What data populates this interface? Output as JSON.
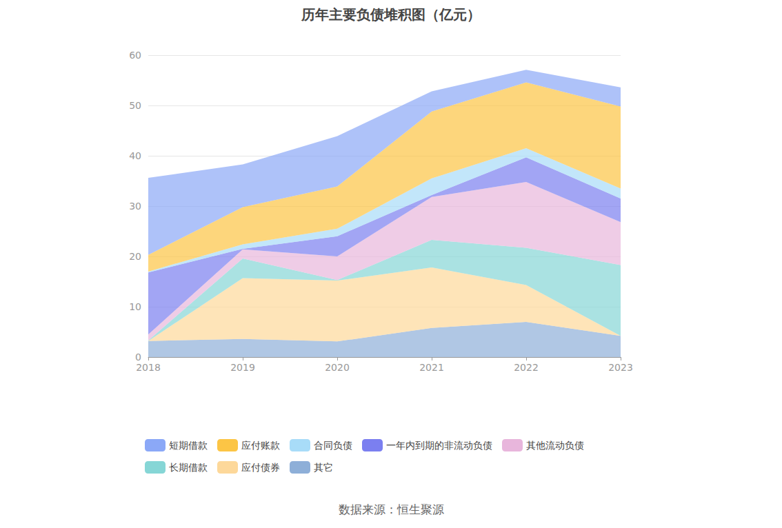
{
  "chart_data": {
    "type": "area",
    "title": "历年主要负债堆积图（亿元）",
    "source": "数据来源：恒生聚源",
    "categories": [
      "2018",
      "2019",
      "2020",
      "2021",
      "2022",
      "2023"
    ],
    "stacked": true,
    "grid": true,
    "legend": "bottom",
    "ylim": [
      0,
      60
    ],
    "yticks": [
      0,
      10,
      20,
      30,
      40,
      50,
      60
    ],
    "series": [
      {
        "name": "短期借款",
        "color": "#8ba8f7",
        "values": [
          15.3,
          8.5,
          10.0,
          4.0,
          2.5,
          3.8
        ]
      },
      {
        "name": "应付账款",
        "color": "#fcc545",
        "values": [
          3.3,
          7.4,
          8.4,
          13.3,
          13.1,
          16.3
        ]
      },
      {
        "name": "合同负债",
        "color": "#a8dcf8",
        "values": [
          0.2,
          0.9,
          1.5,
          3.3,
          1.8,
          2.0
        ]
      },
      {
        "name": "一年内到期的非流动负债",
        "color": "#7b7ff0",
        "values": [
          12.3,
          0.1,
          4.0,
          0.4,
          4.9,
          4.7
        ]
      },
      {
        "name": "其他流动负债",
        "color": "#e8b6dc",
        "values": [
          1.2,
          1.8,
          4.7,
          8.5,
          13.1,
          8.5
        ]
      },
      {
        "name": "长期借款",
        "color": "#86d6d6",
        "values": [
          0.1,
          3.9,
          0.1,
          5.5,
          7.4,
          14.1
        ]
      },
      {
        "name": "应付债券",
        "color": "#fdd89a",
        "values": [
          0,
          12.1,
          12.1,
          12.0,
          7.3,
          0
        ]
      },
      {
        "name": "其它",
        "color": "#8eafd8",
        "values": [
          3.2,
          3.6,
          3.1,
          5.8,
          7.0,
          4.2
        ]
      }
    ]
  }
}
